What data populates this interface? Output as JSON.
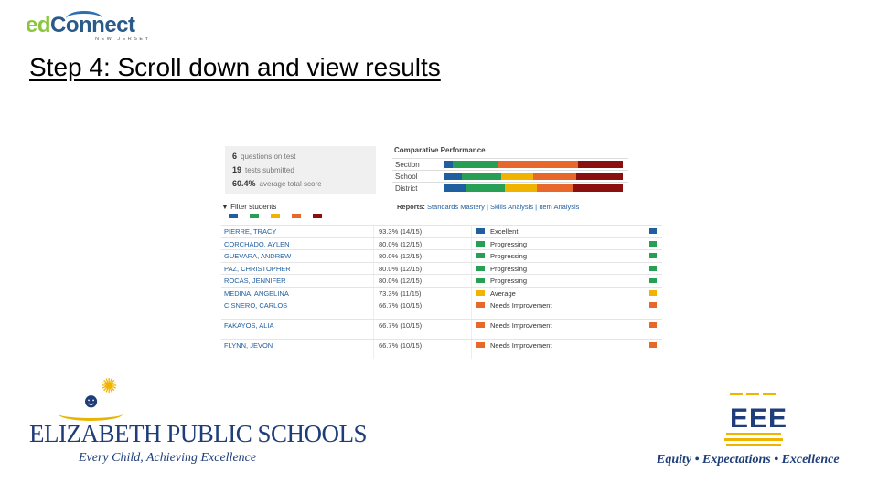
{
  "header": {
    "logo_ed": "ed",
    "logo_connect": "Connect",
    "logo_sub": "NEW JERSEY",
    "title": "Step 4: Scroll down and view results"
  },
  "stats": [
    {
      "value": "6",
      "label": "questions on test"
    },
    {
      "value": "19",
      "label": "tests submitted"
    },
    {
      "value": "60.4%",
      "label": "average total score"
    }
  ],
  "comparative": {
    "title": "Comparative Performance",
    "rows": [
      {
        "label": "Section",
        "segments": [
          {
            "color": "#1f5fa0",
            "pct": 5
          },
          {
            "color": "#27a055",
            "pct": 25
          },
          {
            "color": "#e8672a",
            "pct": 45
          },
          {
            "color": "#8b0f0f",
            "pct": 25
          }
        ]
      },
      {
        "label": "School",
        "segments": [
          {
            "color": "#1f5fa0",
            "pct": 10
          },
          {
            "color": "#27a055",
            "pct": 22
          },
          {
            "color": "#f0b400",
            "pct": 18
          },
          {
            "color": "#e8672a",
            "pct": 24
          },
          {
            "color": "#8b0f0f",
            "pct": 26
          }
        ]
      },
      {
        "label": "District",
        "segments": [
          {
            "color": "#1f5fa0",
            "pct": 12
          },
          {
            "color": "#27a055",
            "pct": 22
          },
          {
            "color": "#f0b400",
            "pct": 18
          },
          {
            "color": "#e8672a",
            "pct": 20
          },
          {
            "color": "#8b0f0f",
            "pct": 28
          }
        ]
      }
    ]
  },
  "filter": {
    "label": "▼ Filter students",
    "swatches": [
      "#1f5fa0",
      "#27a055",
      "#f0b400",
      "#e8672a",
      "#8b0f0f"
    ]
  },
  "reports": {
    "label": "Reports:",
    "links": "Standards Mastery | Skills Analysis | Item Analysis"
  },
  "students": [
    {
      "name": "PIERRE, TRACY",
      "score": "93.3% (14/15)",
      "status": "Excellent",
      "color": "#1f5fa0"
    },
    {
      "name": "CORCHADO, AYLEN",
      "score": "80.0% (12/15)",
      "status": "Progressing",
      "color": "#27a055"
    },
    {
      "name": "GUEVARA, ANDREW",
      "score": "80.0% (12/15)",
      "status": "Progressing",
      "color": "#27a055"
    },
    {
      "name": "PAZ, CHRISTOPHER",
      "score": "80.0% (12/15)",
      "status": "Progressing",
      "color": "#27a055"
    },
    {
      "name": "ROCAS, JENNIFER",
      "score": "80.0% (12/15)",
      "status": "Progressing",
      "color": "#27a055"
    },
    {
      "name": "MEDINA, ANGELINA",
      "score": "73.3% (11/15)",
      "status": "Average",
      "color": "#f0b400"
    },
    {
      "name": "CISNERO, CARLOS",
      "score": "66.7% (10/15)",
      "status": "Needs Improvement",
      "color": "#e8672a"
    },
    {
      "name": "FAKAYOS, ALIA",
      "score": "66.7% (10/15)",
      "status": "Needs Improvement",
      "color": "#e8672a"
    },
    {
      "name": "FLYNN, JEVON",
      "score": "66.7% (10/15)",
      "status": "Needs Improvement",
      "color": "#e8672a"
    }
  ],
  "footer": {
    "eps_name": "ELIZABETH PUBLIC SCHOOLS",
    "eps_tagline": "Every Child, Achieving Excellence",
    "eee_mark": "EEE",
    "eee_tagline": "Equity • Expectations • Excellence"
  }
}
